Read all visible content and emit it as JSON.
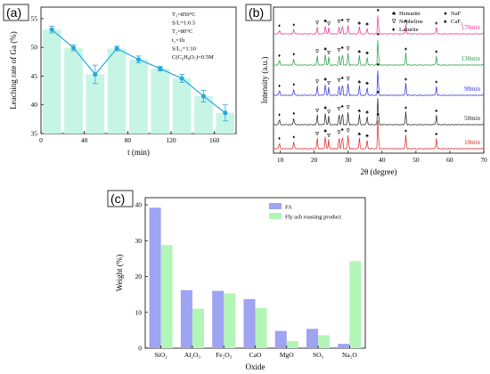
{
  "panels": [
    {
      "label": "(a)"
    },
    {
      "label": "(b)"
    },
    {
      "label": "(c)"
    }
  ],
  "conditions": [
    "T₁=850°C",
    "S/L=1:0.5",
    "T₂=80°C",
    "t₂=1h",
    "S/L₂=1:10",
    "C(C₆H₈O₇)=0.5M"
  ],
  "xrd_legend": [
    {
      "symbol": "♣",
      "name": "Hematite"
    },
    {
      "symbol": "∇",
      "name": "Nepheline"
    },
    {
      "symbol": "♦",
      "name": "Lazurite"
    },
    {
      "symbol": "●",
      "name": "NaF"
    },
    {
      "symbol": "♠",
      "name": "CaF₂"
    }
  ],
  "chart_data": [
    {
      "type": "bar",
      "panel": "(a)",
      "xlabel": "t (min)",
      "ylabel": "Leaching rate of Ga (%)",
      "x": [
        10,
        30,
        50,
        70,
        90,
        110,
        130,
        150,
        170
      ],
      "values": [
        53.1,
        49.9,
        45.3,
        49.8,
        47.9,
        46.3,
        44.6,
        41.5,
        38.6
      ],
      "errors": [
        0.6,
        0.5,
        1.6,
        0.4,
        0.6,
        0.4,
        0.7,
        1.0,
        1.4
      ],
      "line_overlay": true,
      "xticks": [
        0,
        40,
        80,
        120,
        160
      ],
      "yticks": [
        35,
        40,
        45,
        50,
        55
      ],
      "xlim": [
        0,
        180
      ],
      "ylim": [
        35,
        57
      ],
      "bar_color": "#c6f5e6",
      "line_color": "#29a8dc"
    },
    {
      "type": "line",
      "panel": "(b)",
      "xlabel": "2θ (degree)",
      "ylabel": "Intensity (a.u.)",
      "xticks": [
        10,
        20,
        30,
        40,
        50,
        60,
        70
      ],
      "xlim": [
        8,
        70
      ],
      "series": [
        {
          "name": "170min",
          "color": "#e8318f"
        },
        {
          "name": "130min",
          "color": "#1e9a3a"
        },
        {
          "name": "90min",
          "color": "#2f2fd8"
        },
        {
          "name": "50min",
          "color": "#222222"
        },
        {
          "name": "10min",
          "color": "#e02020"
        }
      ],
      "peaks": [
        {
          "x": 9.7,
          "h": 0.2,
          "marker": "♦"
        },
        {
          "x": 14.0,
          "h": 0.25,
          "marker": "♦"
        },
        {
          "x": 20.9,
          "h": 0.35,
          "marker": "∇"
        },
        {
          "x": 23.3,
          "h": 0.45,
          "marker": "♣"
        },
        {
          "x": 24.3,
          "h": 0.3,
          "marker": "∇"
        },
        {
          "x": 27.3,
          "h": 0.4,
          "marker": "∇"
        },
        {
          "x": 28.3,
          "h": 0.5,
          "marker": "♠"
        },
        {
          "x": 30.0,
          "h": 0.45,
          "marker": "∇"
        },
        {
          "x": 33.3,
          "h": 0.35,
          "marker": "♣"
        },
        {
          "x": 35.6,
          "h": 0.3,
          "marker": "♣"
        },
        {
          "x": 38.8,
          "h": 1.0,
          "marker": "●"
        },
        {
          "x": 47.0,
          "h": 0.45,
          "marker": "♠"
        },
        {
          "x": 56.0,
          "h": 0.35,
          "marker": "♠"
        }
      ]
    },
    {
      "type": "bar",
      "panel": "(c)",
      "xlabel": "Oxide",
      "ylabel": "Weight (%)",
      "categories": [
        "SiO₂",
        "Al₂O₃",
        "Fe₂O₃",
        "CaO",
        "MgO",
        "SO₃",
        "Na₂O"
      ],
      "series": [
        {
          "name": "FA",
          "color": "#9ea3f2",
          "values": [
            39.2,
            16.2,
            16.0,
            13.7,
            4.8,
            5.4,
            1.2
          ]
        },
        {
          "name": "Fly ash roasting product",
          "color": "#b3f5b6",
          "values": [
            28.8,
            11.0,
            15.3,
            11.2,
            2.0,
            3.6,
            24.3
          ]
        }
      ],
      "yticks": [
        0,
        10,
        20,
        30,
        40
      ],
      "ylim": [
        0,
        42
      ],
      "legend": "top-right"
    }
  ]
}
